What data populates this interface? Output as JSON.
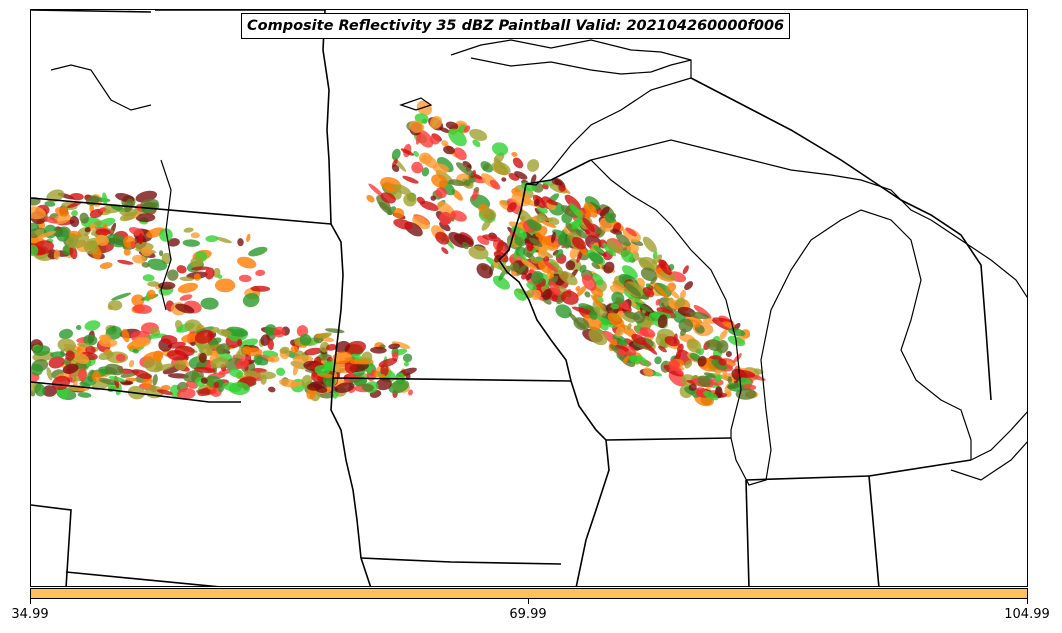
{
  "title": "Composite Reflectivity 35 dBZ Paintball Valid: 202104260000f006",
  "colorbar": {
    "color": "#ffc060",
    "tick_labels": [
      "34.99",
      "69.99",
      "104.99"
    ]
  },
  "paint_colors": [
    "#2a9a2a",
    "#32d232",
    "#ff3a3a",
    "#d01010",
    "#ff7a00",
    "#7a1010",
    "#a0a030",
    "#ff9a30",
    "#5a7a2a"
  ],
  "regions": [
    "Minnesota",
    "Wisconsin",
    "Michigan",
    "South Dakota",
    "North Dakota",
    "Iowa",
    "Lake Superior",
    "Lake Michigan"
  ]
}
